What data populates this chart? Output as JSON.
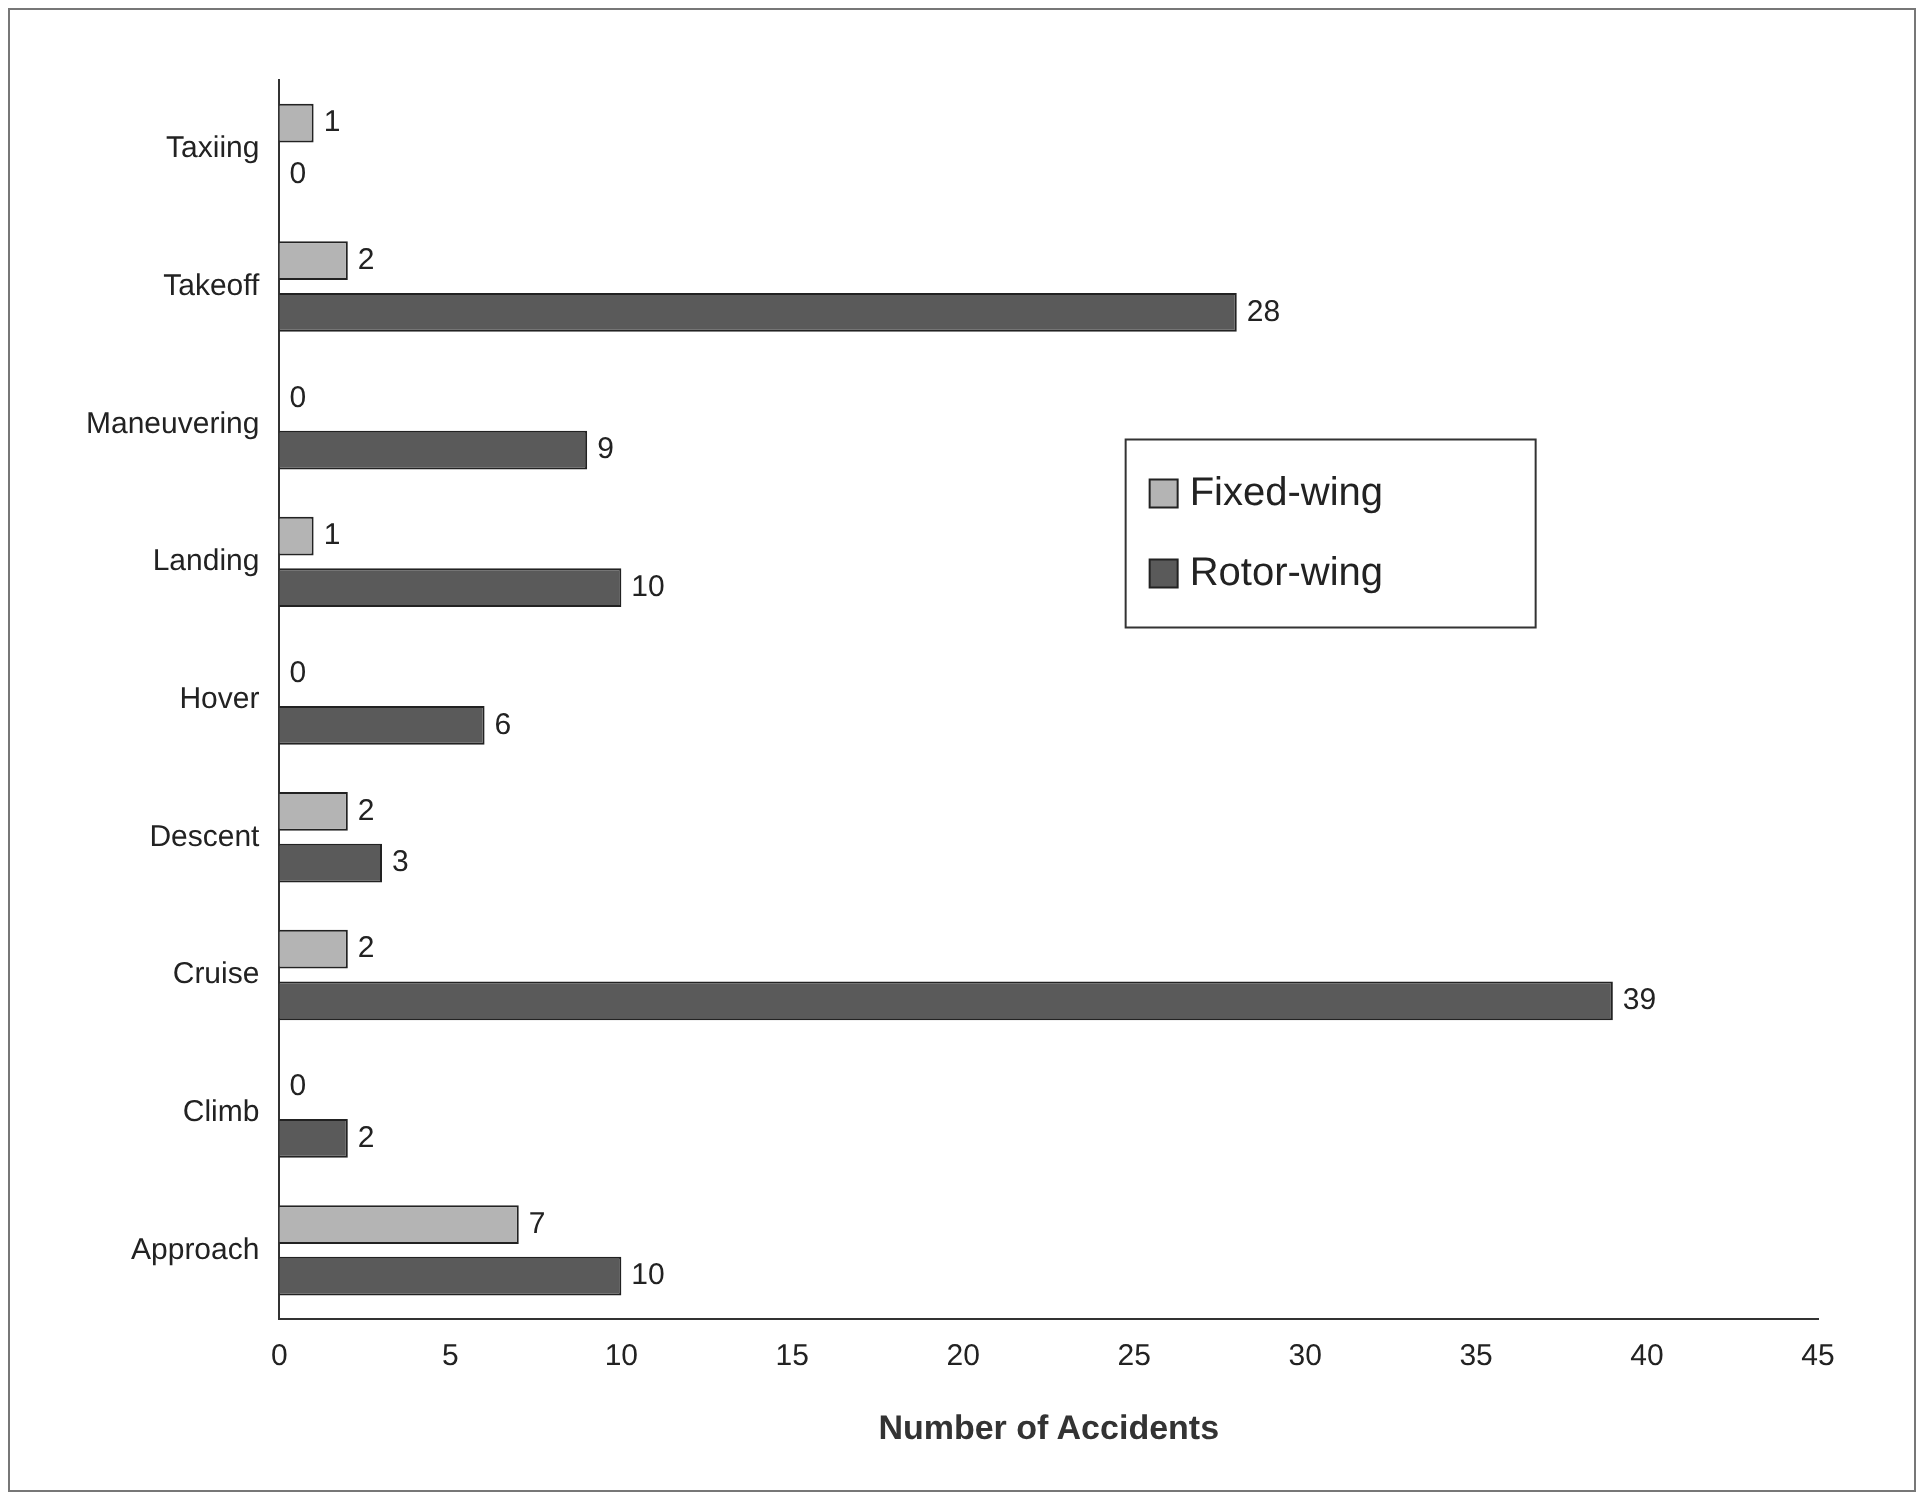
{
  "chart_data": {
    "type": "bar",
    "orientation": "horizontal",
    "xlabel": "Number of Accidents",
    "categories": [
      "Taxiing",
      "Takeoff",
      "Maneuvering",
      "Landing",
      "Hover",
      "Descent",
      "Cruise",
      "Climb",
      "Approach"
    ],
    "series": [
      {
        "name": "Fixed-wing",
        "color": "#b4b4b4",
        "values": [
          1,
          2,
          0,
          1,
          0,
          2,
          2,
          0,
          7
        ]
      },
      {
        "name": "Rotor-wing",
        "color": "#5a5a5a",
        "values": [
          0,
          28,
          9,
          10,
          6,
          3,
          39,
          2,
          10
        ]
      }
    ],
    "xlim": [
      0,
      45
    ],
    "xticks": [
      0,
      5,
      10,
      15,
      20,
      25,
      30,
      35,
      40,
      45
    ],
    "grid": false,
    "legend": "right",
    "data_labels": true
  }
}
